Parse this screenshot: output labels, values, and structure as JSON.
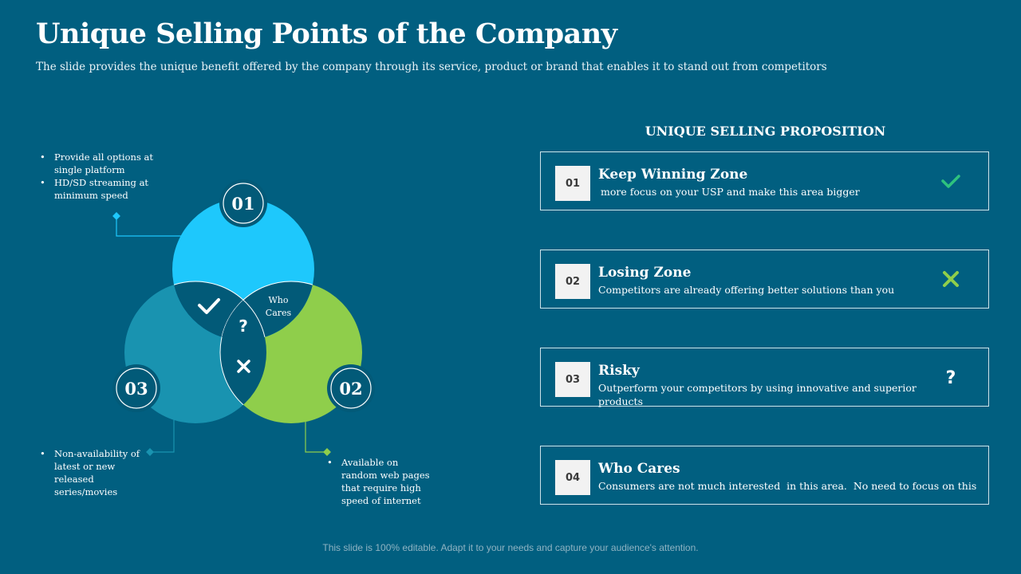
{
  "header": {
    "title": "Unique Selling Points of the Company",
    "subtitle": "The slide provides the unique benefit offered by the company through its service, product or brand that enables it to stand out from competitors"
  },
  "venn": {
    "circles": [
      {
        "label": "01",
        "color": "#1ec8fc"
      },
      {
        "label": "02",
        "color": "#8fce4b"
      },
      {
        "label": "03",
        "color": "#1993b0"
      }
    ],
    "overlaps": {
      "center": "?",
      "pair_12": [
        "Who",
        "Cares"
      ],
      "pair_13_icon": "check-icon",
      "pair_23_icon": "cross-icon"
    },
    "notes": {
      "circle1": [
        "Provide all options at single platform",
        "HD/SD streaming at minimum speed"
      ],
      "circle2": [
        "Available on random web pages that require high speed of internet"
      ],
      "circle3": [
        "Non-availability of latest or new released series/movies"
      ]
    }
  },
  "usp": {
    "heading": "UNIQUE SELLING PROPOSITION",
    "items": [
      {
        "num": "01",
        "title": "Keep Winning Zone",
        "desc": "more focus on your USP and make this area bigger",
        "icon": "check-icon",
        "icon_color": "#2ec27e"
      },
      {
        "num": "02",
        "title": "Losing Zone",
        "desc": "Competitors are already offering better solutions than you",
        "icon": "cross-icon",
        "icon_color": "#8fce4b"
      },
      {
        "num": "03",
        "title": "Risky",
        "desc": "Outperform your competitors by using innovative and superior products",
        "icon": "question-icon",
        "icon_color": "#ffffff"
      },
      {
        "num": "04",
        "title": "Who Cares",
        "desc": "Consumers are not much interested  in this area.  No need to focus on this",
        "icon": "none",
        "icon_color": ""
      }
    ]
  },
  "footer": {
    "text": "This slide is 100% editable. Adapt it to your needs and capture your audience's attention."
  }
}
